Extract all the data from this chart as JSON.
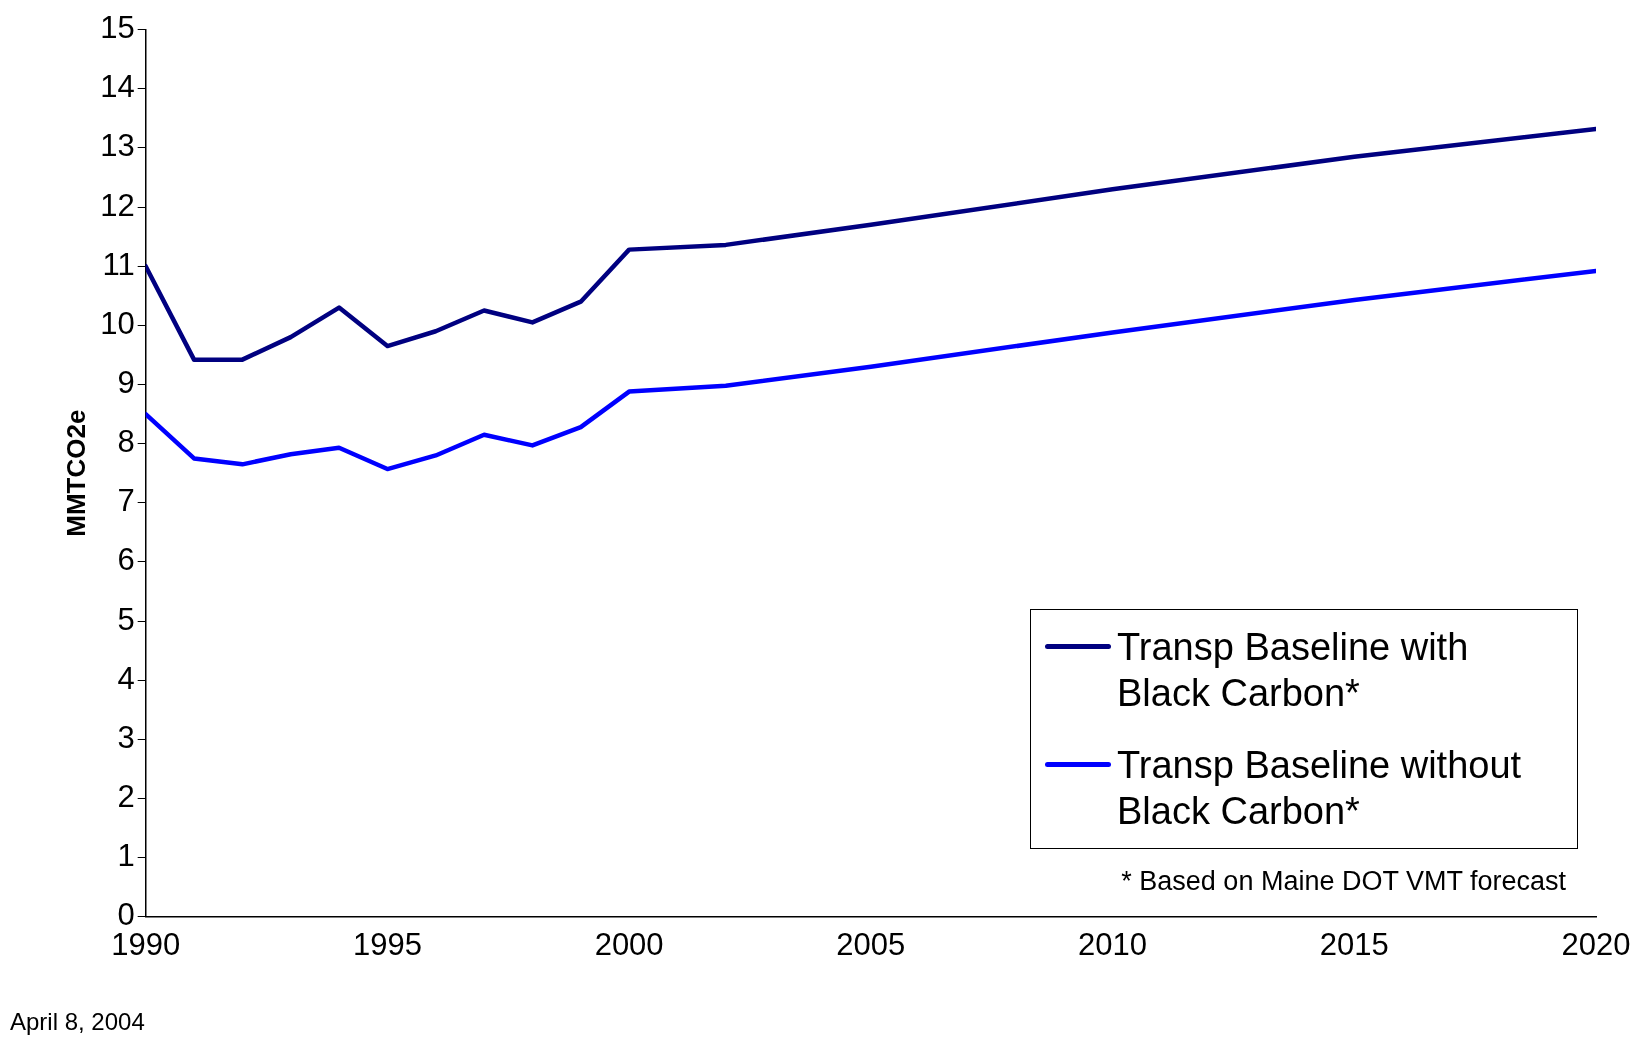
{
  "chart_data": {
    "type": "line",
    "ylabel": "MMTCO2e",
    "x": [
      1990,
      1991,
      1992,
      1993,
      1994,
      1995,
      1996,
      1997,
      1998,
      1999,
      2000,
      2002,
      2005,
      2010,
      2015,
      2020
    ],
    "series": [
      {
        "name": "Transp Baseline with Black Carbon*",
        "color": "#000080",
        "values": [
          11.0,
          9.42,
          9.42,
          9.8,
          10.3,
          9.65,
          9.9,
          10.25,
          10.05,
          10.4,
          11.28,
          11.36,
          11.7,
          12.3,
          12.85,
          13.32
        ]
      },
      {
        "name": "Transp Baseline without Black Carbon*",
        "color": "#0000ff",
        "values": [
          8.5,
          7.75,
          7.65,
          7.82,
          7.93,
          7.57,
          7.8,
          8.15,
          7.97,
          8.28,
          8.88,
          8.98,
          9.3,
          9.88,
          10.43,
          10.92
        ]
      }
    ],
    "xlim": [
      1990,
      2020
    ],
    "xticks": [
      1990,
      1995,
      2000,
      2005,
      2010,
      2015,
      2020
    ],
    "ylim": [
      0,
      15
    ],
    "yticks": [
      0,
      1,
      2,
      3,
      4,
      5,
      6,
      7,
      8,
      9,
      10,
      11,
      12,
      13,
      14,
      15
    ],
    "grid": false,
    "legend": "bottom right",
    "marker": "none",
    "line_style": "solid",
    "annotations": [
      "* Based on Maine DOT VMT forecast",
      "April 8, 2004"
    ]
  }
}
